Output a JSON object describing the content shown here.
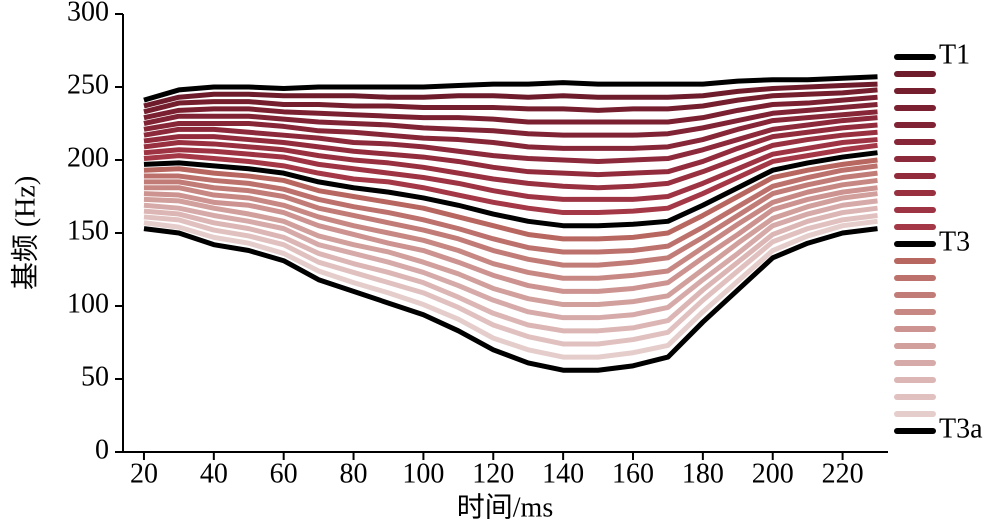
{
  "chart_data": {
    "type": "line",
    "x_label": "时间/ms",
    "y_label": "基频 (Hz)",
    "x": [
      20,
      30,
      40,
      50,
      60,
      70,
      80,
      90,
      100,
      110,
      120,
      130,
      140,
      150,
      160,
      170,
      180,
      190,
      200,
      210,
      220,
      230
    ],
    "xlim": [
      14,
      233
    ],
    "xticks": [
      20,
      40,
      60,
      80,
      100,
      120,
      140,
      160,
      180,
      200,
      220
    ],
    "ylim": [
      0,
      300
    ],
    "yticks": [
      0,
      50,
      100,
      150,
      200,
      250,
      300
    ],
    "legend": "right",
    "series": [
      {
        "name": "T1",
        "color": "#000000",
        "values": [
          241,
          248,
          250,
          250,
          249,
          250,
          250,
          250,
          250,
          251,
          252,
          252,
          253,
          252,
          252,
          252,
          252,
          254,
          255,
          255,
          256,
          257
        ]
      },
      {
        "color": "#6e1c2b",
        "values": [
          237,
          243,
          245,
          245,
          244,
          244,
          244,
          243,
          243,
          244,
          244,
          243,
          244,
          243,
          243,
          243,
          244,
          247,
          249,
          250,
          251,
          252
        ]
      },
      {
        "color": "#741e2e",
        "values": [
          233,
          239,
          240,
          240,
          238,
          238,
          237,
          237,
          236,
          236,
          236,
          235,
          235,
          234,
          235,
          235,
          237,
          241,
          244,
          245,
          246,
          248
        ]
      },
      {
        "color": "#7a2031",
        "values": [
          229,
          234,
          235,
          235,
          233,
          232,
          231,
          230,
          229,
          229,
          228,
          226,
          226,
          226,
          226,
          226,
          229,
          234,
          238,
          239,
          241,
          243
        ]
      },
      {
        "color": "#802334",
        "values": [
          225,
          230,
          230,
          230,
          228,
          226,
          225,
          224,
          222,
          221,
          220,
          218,
          217,
          217,
          217,
          218,
          222,
          227,
          232,
          234,
          236,
          238
        ]
      },
      {
        "color": "#862637",
        "values": [
          221,
          225,
          225,
          225,
          223,
          220,
          219,
          217,
          215,
          214,
          212,
          209,
          208,
          208,
          208,
          209,
          214,
          221,
          227,
          229,
          231,
          233
        ]
      },
      {
        "color": "#8c293a",
        "values": [
          217,
          221,
          221,
          219,
          217,
          215,
          212,
          211,
          209,
          206,
          203,
          201,
          200,
          199,
          200,
          201,
          207,
          214,
          221,
          224,
          227,
          229
        ]
      },
      {
        "color": "#922c3d",
        "values": [
          213,
          216,
          216,
          214,
          212,
          209,
          206,
          204,
          202,
          199,
          195,
          192,
          191,
          190,
          191,
          192,
          199,
          208,
          216,
          219,
          222,
          224
        ]
      },
      {
        "color": "#983040",
        "values": [
          209,
          212,
          211,
          209,
          207,
          203,
          200,
          198,
          195,
          191,
          187,
          184,
          182,
          181,
          182,
          184,
          192,
          201,
          210,
          214,
          217,
          219
        ]
      },
      {
        "color": "#9e3443",
        "values": [
          205,
          207,
          206,
          204,
          202,
          197,
          194,
          191,
          188,
          184,
          179,
          175,
          173,
          173,
          173,
          175,
          184,
          194,
          204,
          208,
          212,
          214
        ]
      },
      {
        "color": "#a43846",
        "values": [
          201,
          203,
          201,
          199,
          196,
          191,
          187,
          185,
          181,
          176,
          171,
          167,
          164,
          164,
          165,
          167,
          177,
          188,
          199,
          203,
          207,
          210
        ]
      },
      {
        "name": "T3",
        "color": "#000000",
        "values": [
          197,
          198,
          196,
          194,
          191,
          185,
          181,
          178,
          174,
          169,
          163,
          158,
          155,
          155,
          156,
          158,
          169,
          181,
          193,
          198,
          202,
          205
        ]
      },
      {
        "color": "#b86660",
        "values": [
          193,
          194,
          191,
          189,
          186,
          179,
          175,
          171,
          167,
          161,
          155,
          149,
          146,
          146,
          147,
          150,
          162,
          175,
          188,
          193,
          197,
          200
        ]
      },
      {
        "color": "#bd716c",
        "values": [
          189,
          189,
          186,
          184,
          180,
          173,
          168,
          164,
          159,
          153,
          146,
          140,
          137,
          137,
          138,
          141,
          154,
          168,
          182,
          188,
          193,
          196
        ]
      },
      {
        "color": "#c27c78",
        "values": [
          185,
          185,
          181,
          179,
          175,
          167,
          162,
          157,
          152,
          146,
          138,
          132,
          128,
          128,
          130,
          133,
          147,
          162,
          177,
          183,
          188,
          191
        ]
      },
      {
        "color": "#c78884",
        "values": [
          181,
          181,
          176,
          174,
          169,
          161,
          155,
          150,
          145,
          138,
          129,
          123,
          119,
          119,
          121,
          124,
          140,
          156,
          171,
          178,
          183,
          186
        ]
      },
      {
        "color": "#cc9390",
        "values": [
          177,
          176,
          171,
          169,
          164,
          155,
          149,
          143,
          138,
          130,
          121,
          114,
          110,
          110,
          112,
          116,
          133,
          149,
          166,
          173,
          178,
          181
        ]
      },
      {
        "color": "#d19f9c",
        "values": [
          173,
          172,
          167,
          163,
          158,
          148,
          142,
          137,
          130,
          122,
          112,
          105,
          101,
          101,
          103,
          107,
          125,
          143,
          160,
          168,
          174,
          177
        ]
      },
      {
        "color": "#d6aaa8",
        "values": [
          169,
          167,
          162,
          158,
          153,
          142,
          136,
          130,
          123,
          114,
          104,
          96,
          92,
          92,
          94,
          99,
          118,
          136,
          155,
          163,
          169,
          172
        ]
      },
      {
        "color": "#dbb6b4",
        "values": [
          165,
          163,
          157,
          153,
          147,
          136,
          129,
          123,
          116,
          106,
          95,
          87,
          83,
          83,
          85,
          90,
          111,
          130,
          149,
          158,
          164,
          167
        ]
      },
      {
        "color": "#e0c1c0",
        "values": [
          161,
          159,
          152,
          148,
          142,
          130,
          123,
          116,
          109,
          99,
          87,
          79,
          74,
          74,
          77,
          82,
          104,
          124,
          144,
          153,
          159,
          162
        ]
      },
      {
        "color": "#e5cdcc",
        "values": [
          157,
          154,
          147,
          143,
          136,
          124,
          116,
          109,
          101,
          91,
          78,
          70,
          65,
          65,
          68,
          73,
          96,
          117,
          138,
          148,
          155,
          158
        ]
      },
      {
        "name": "T3a",
        "color": "#000000",
        "values": [
          153,
          150,
          142,
          138,
          131,
          118,
          110,
          102,
          94,
          83,
          70,
          61,
          56,
          56,
          59,
          65,
          89,
          111,
          133,
          143,
          150,
          153
        ]
      }
    ]
  }
}
